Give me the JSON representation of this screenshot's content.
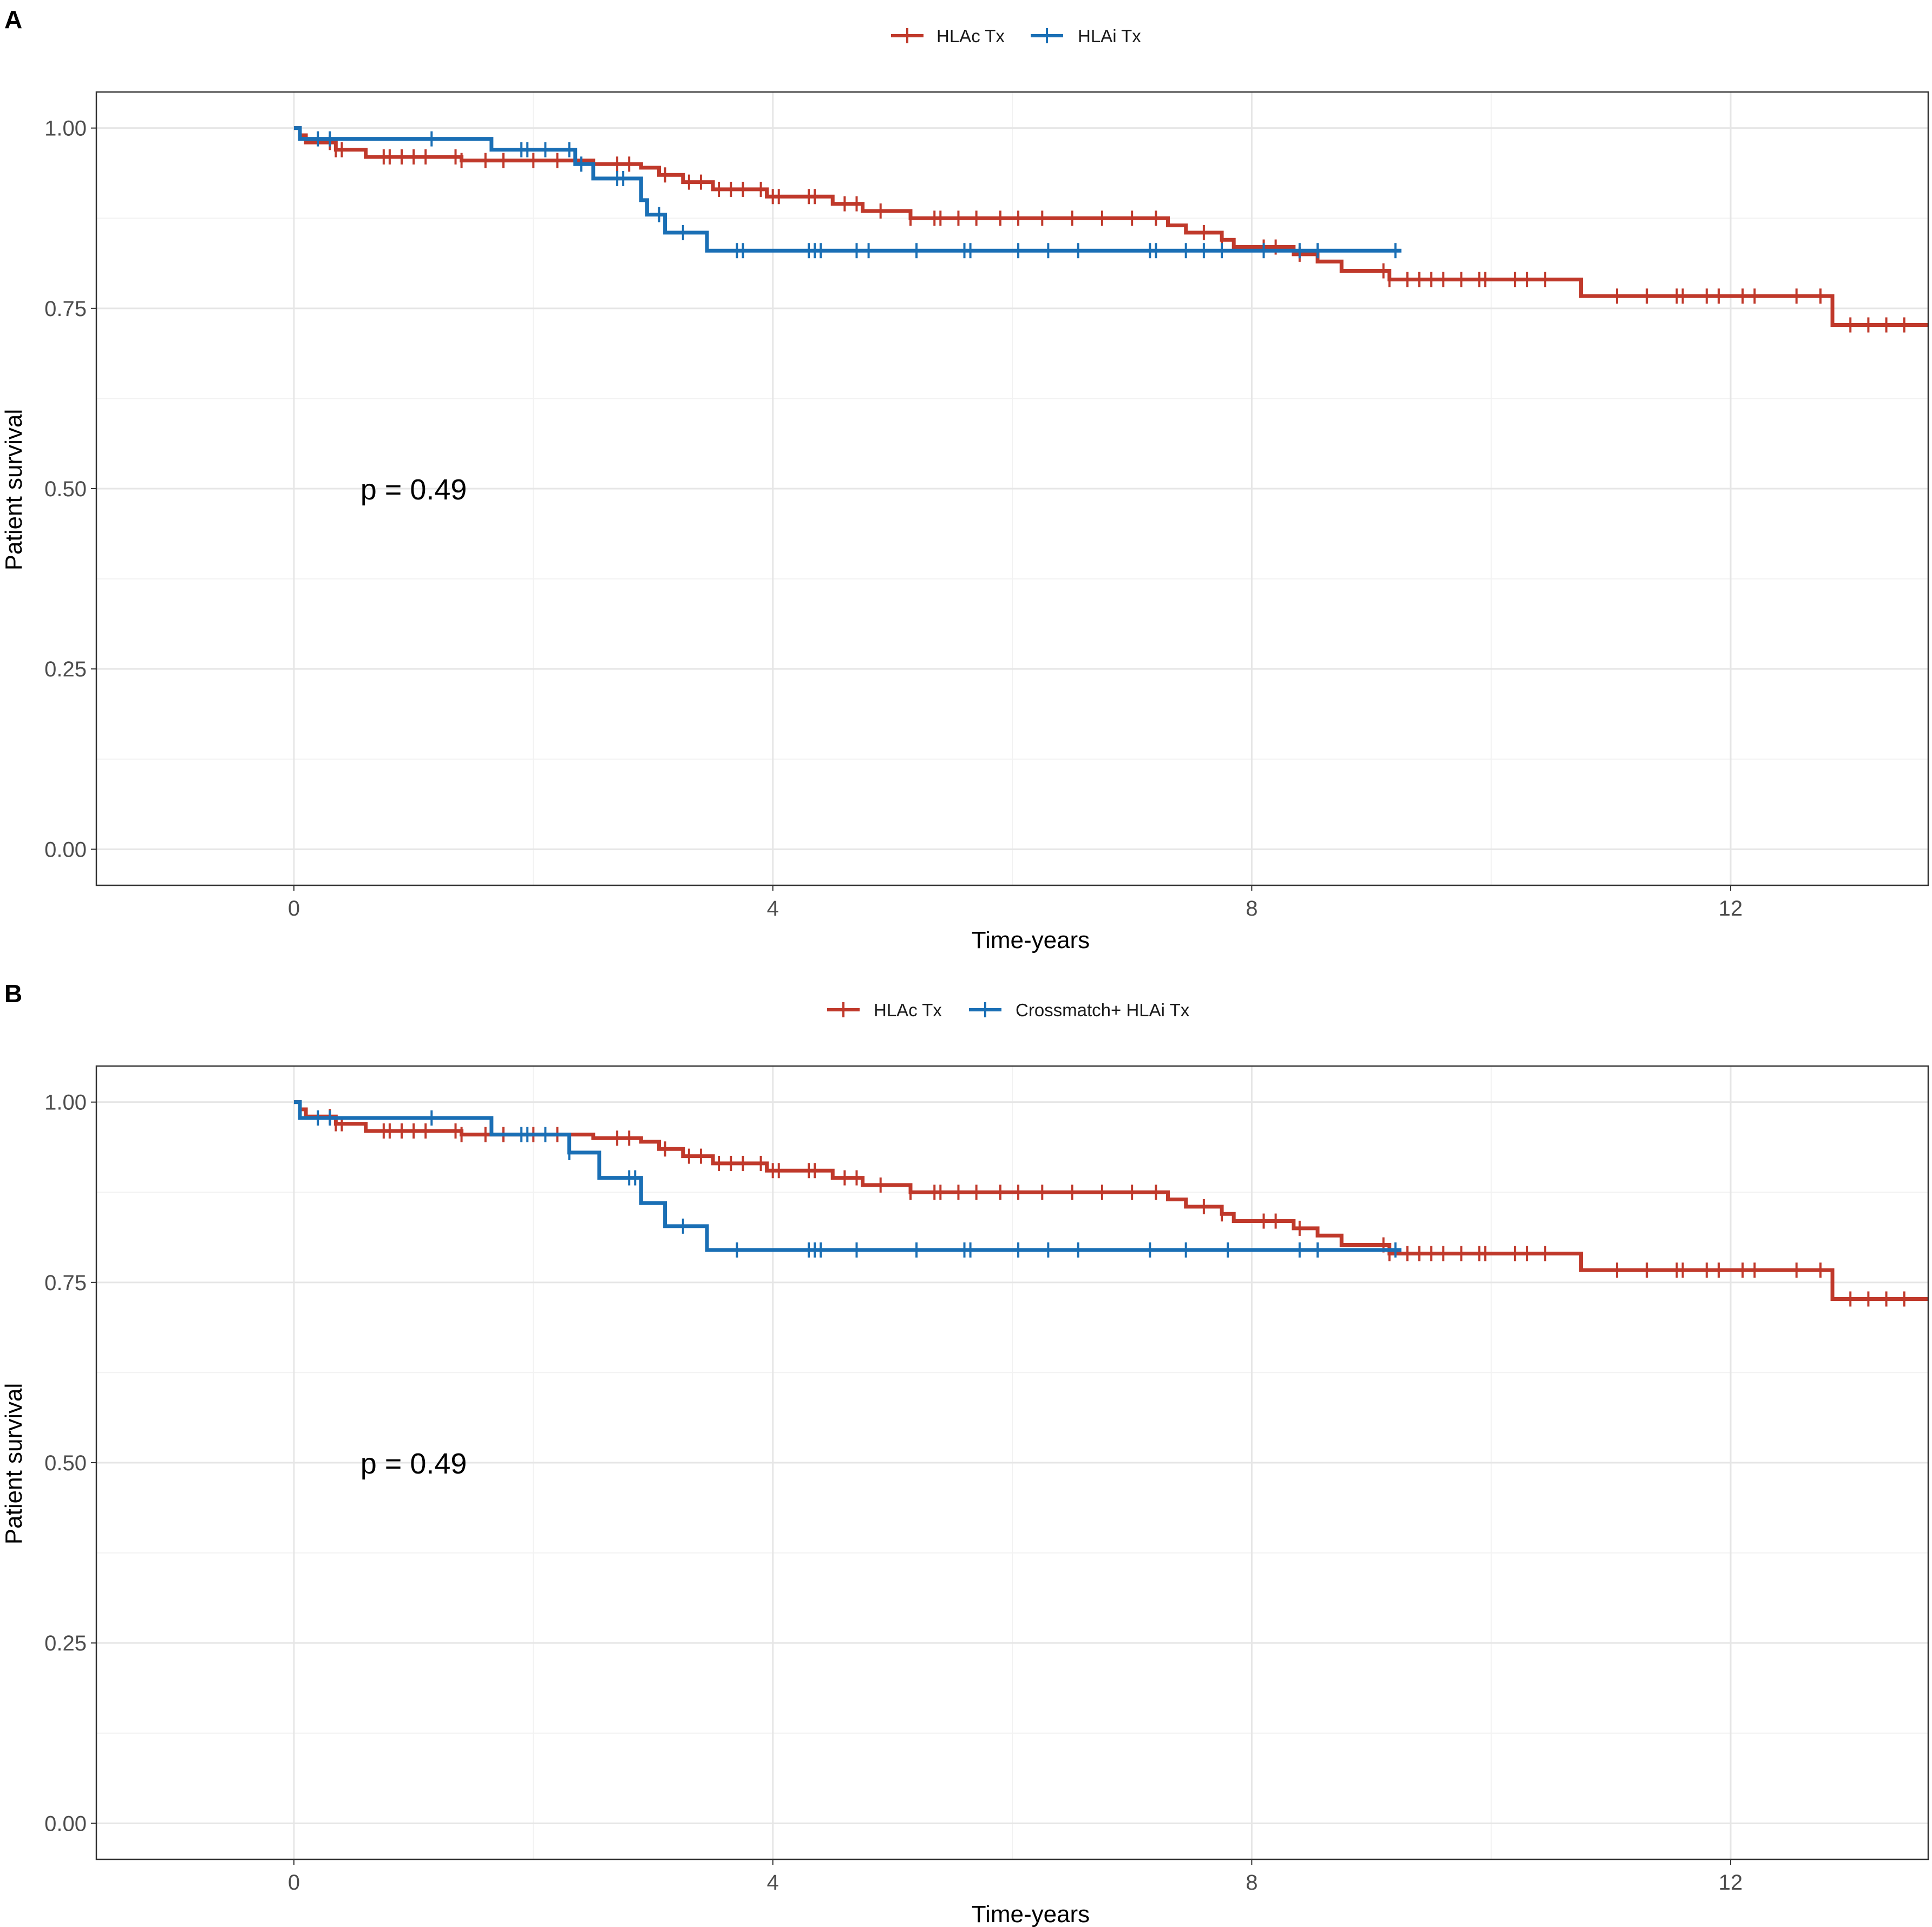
{
  "colors": {
    "series_a": "#C0392B",
    "series_b": "#1A6FB5",
    "grid_major": "#E6E6E6",
    "grid_minor": "#F2F2F2",
    "border": "#333333"
  },
  "chart_data": [
    {
      "type": "line",
      "panel": "A",
      "xlabel": "Time-years",
      "ylabel": "Patient survival",
      "xlim": [
        -1.65,
        13.65
      ],
      "ylim": [
        -0.05,
        1.05
      ],
      "xticks": [
        {
          "v": 0,
          "label": "0"
        },
        {
          "v": 4,
          "label": "4"
        },
        {
          "v": 8,
          "label": "8"
        },
        {
          "v": 12,
          "label": "12"
        }
      ],
      "yticks": [
        {
          "v": 0,
          "label": "0.00"
        },
        {
          "v": 0.25,
          "label": "0.25"
        },
        {
          "v": 0.5,
          "label": "0.50"
        },
        {
          "v": 0.75,
          "label": "0.75"
        },
        {
          "v": 1,
          "label": "1.00"
        }
      ],
      "legend_position": "top",
      "annotation": "p = 0.49",
      "annotation_at": [
        1.0,
        0.5
      ],
      "series": [
        {
          "name": "HLAc Tx",
          "color": "#C0392B",
          "steps": [
            [
              0,
              1.0
            ],
            [
              0.05,
              0.99
            ],
            [
              0.1,
              0.98
            ],
            [
              0.35,
              0.97
            ],
            [
              0.6,
              0.96
            ],
            [
              1.4,
              0.955
            ],
            [
              2.5,
              0.95
            ],
            [
              2.9,
              0.945
            ],
            [
              3.05,
              0.935
            ],
            [
              3.25,
              0.925
            ],
            [
              3.5,
              0.915
            ],
            [
              3.95,
              0.905
            ],
            [
              4.5,
              0.895
            ],
            [
              4.75,
              0.885
            ],
            [
              5.15,
              0.875
            ],
            [
              7.3,
              0.865
            ],
            [
              7.45,
              0.855
            ],
            [
              7.75,
              0.845
            ],
            [
              7.85,
              0.835
            ],
            [
              8.35,
              0.825
            ],
            [
              8.55,
              0.815
            ],
            [
              8.75,
              0.802
            ],
            [
              9.15,
              0.79
            ],
            [
              10.75,
              0.767
            ],
            [
              12.85,
              0.727
            ],
            [
              13.65,
              0.727
            ]
          ],
          "censor": [
            0.3,
            0.35,
            0.4,
            0.75,
            0.8,
            0.9,
            1.0,
            1.1,
            1.35,
            1.4,
            1.6,
            1.75,
            2.0,
            2.2,
            2.7,
            2.8,
            3.1,
            3.3,
            3.4,
            3.55,
            3.65,
            3.75,
            3.9,
            4.0,
            4.05,
            4.3,
            4.35,
            4.6,
            4.7,
            4.9,
            5.15,
            5.35,
            5.4,
            5.55,
            5.7,
            5.9,
            6.05,
            6.25,
            6.5,
            6.75,
            7.0,
            7.2,
            7.6,
            7.75,
            8.1,
            8.2,
            8.4,
            9.1,
            9.15,
            9.3,
            9.4,
            9.5,
            9.6,
            9.75,
            9.9,
            9.95,
            10.2,
            10.3,
            10.45,
            11.05,
            11.3,
            11.55,
            11.6,
            11.8,
            11.9,
            12.1,
            12.2,
            12.55,
            12.75,
            13.0,
            13.15,
            13.3,
            13.45
          ]
        },
        {
          "name": "HLAi Tx",
          "color": "#1A6FB5",
          "steps": [
            [
              0,
              1.0
            ],
            [
              0.05,
              0.985
            ],
            [
              1.65,
              0.97
            ],
            [
              2.35,
              0.95
            ],
            [
              2.5,
              0.93
            ],
            [
              2.9,
              0.9
            ],
            [
              2.95,
              0.88
            ],
            [
              3.1,
              0.855
            ],
            [
              3.45,
              0.83
            ],
            [
              9.25,
              0.83
            ]
          ],
          "censor": [
            0.2,
            0.3,
            1.15,
            1.9,
            1.95,
            2.1,
            2.3,
            2.4,
            2.7,
            2.75,
            3.05,
            3.25,
            3.7,
            3.75,
            4.3,
            4.35,
            4.4,
            4.7,
            4.8,
            5.2,
            5.6,
            5.65,
            6.05,
            6.3,
            6.55,
            7.15,
            7.2,
            7.45,
            7.6,
            7.75,
            8.1,
            8.4,
            8.55,
            9.2
          ]
        }
      ]
    },
    {
      "type": "line",
      "panel": "B",
      "xlabel": "Time-years",
      "ylabel": "Patient survival",
      "xlim": [
        -1.65,
        13.65
      ],
      "ylim": [
        -0.05,
        1.05
      ],
      "xticks": [
        {
          "v": 0,
          "label": "0"
        },
        {
          "v": 4,
          "label": "4"
        },
        {
          "v": 8,
          "label": "8"
        },
        {
          "v": 12,
          "label": "12"
        }
      ],
      "yticks": [
        {
          "v": 0,
          "label": "0.00"
        },
        {
          "v": 0.25,
          "label": "0.25"
        },
        {
          "v": 0.5,
          "label": "0.50"
        },
        {
          "v": 0.75,
          "label": "0.75"
        },
        {
          "v": 1,
          "label": "1.00"
        }
      ],
      "legend_position": "top",
      "annotation": "p = 0.49",
      "annotation_at": [
        1.0,
        0.5
      ],
      "series": [
        {
          "name": "HLAc Tx",
          "color": "#C0392B",
          "steps": [
            [
              0,
              1.0
            ],
            [
              0.05,
              0.99
            ],
            [
              0.1,
              0.98
            ],
            [
              0.35,
              0.97
            ],
            [
              0.6,
              0.96
            ],
            [
              1.4,
              0.955
            ],
            [
              2.5,
              0.95
            ],
            [
              2.9,
              0.945
            ],
            [
              3.05,
              0.935
            ],
            [
              3.25,
              0.925
            ],
            [
              3.5,
              0.915
            ],
            [
              3.95,
              0.905
            ],
            [
              4.5,
              0.895
            ],
            [
              4.75,
              0.885
            ],
            [
              5.15,
              0.875
            ],
            [
              7.3,
              0.865
            ],
            [
              7.45,
              0.855
            ],
            [
              7.75,
              0.845
            ],
            [
              7.85,
              0.835
            ],
            [
              8.35,
              0.825
            ],
            [
              8.55,
              0.815
            ],
            [
              8.75,
              0.802
            ],
            [
              9.15,
              0.79
            ],
            [
              10.75,
              0.767
            ],
            [
              12.85,
              0.727
            ],
            [
              13.65,
              0.727
            ]
          ],
          "censor": [
            0.3,
            0.35,
            0.4,
            0.75,
            0.8,
            0.9,
            1.0,
            1.1,
            1.35,
            1.4,
            1.6,
            1.75,
            2.0,
            2.2,
            2.7,
            2.8,
            3.1,
            3.3,
            3.4,
            3.55,
            3.65,
            3.75,
            3.9,
            4.0,
            4.05,
            4.3,
            4.35,
            4.6,
            4.7,
            4.9,
            5.15,
            5.35,
            5.4,
            5.55,
            5.7,
            5.9,
            6.05,
            6.25,
            6.5,
            6.75,
            7.0,
            7.2,
            7.6,
            7.75,
            8.1,
            8.2,
            8.4,
            9.1,
            9.15,
            9.3,
            9.4,
            9.5,
            9.6,
            9.75,
            9.9,
            9.95,
            10.2,
            10.3,
            10.45,
            11.05,
            11.3,
            11.55,
            11.6,
            11.8,
            11.9,
            12.1,
            12.2,
            12.55,
            12.75,
            13.0,
            13.15,
            13.3,
            13.45
          ]
        },
        {
          "name": "Crossmatch+ HLAi Tx",
          "color": "#1A6FB5",
          "steps": [
            [
              0,
              1.0
            ],
            [
              0.05,
              0.978
            ],
            [
              1.65,
              0.955
            ],
            [
              2.3,
              0.93
            ],
            [
              2.55,
              0.895
            ],
            [
              2.9,
              0.86
            ],
            [
              3.1,
              0.828
            ],
            [
              3.45,
              0.795
            ],
            [
              9.25,
              0.795
            ]
          ],
          "censor": [
            0.2,
            0.3,
            1.15,
            1.9,
            1.95,
            2.1,
            2.3,
            2.8,
            2.85,
            3.25,
            3.7,
            4.3,
            4.35,
            4.4,
            4.7,
            5.2,
            5.6,
            5.65,
            6.05,
            6.3,
            6.55,
            7.15,
            7.45,
            7.8,
            8.4,
            8.55,
            9.2
          ]
        }
      ]
    }
  ]
}
